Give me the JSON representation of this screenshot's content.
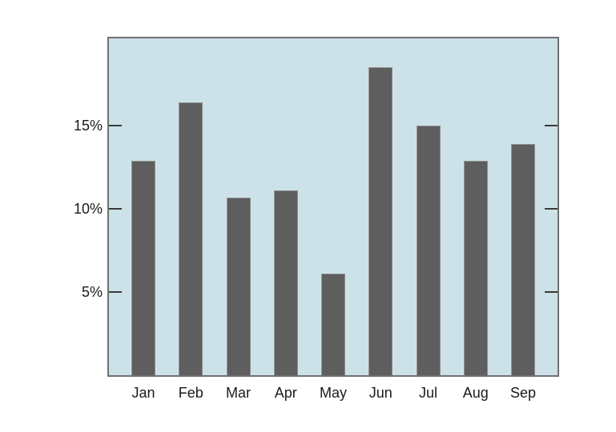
{
  "chart_data": {
    "type": "bar",
    "title": "",
    "xlabel": "",
    "ylabel": "",
    "categories": [
      "Jan",
      "Feb",
      "Mar",
      "Apr",
      "May",
      "Jun",
      "Jul",
      "Aug",
      "Sep"
    ],
    "values": [
      12.9,
      16.4,
      10.7,
      11.1,
      6.1,
      18.5,
      15.0,
      12.9,
      13.9
    ],
    "y_ticks": [
      5,
      10,
      15
    ],
    "y_tick_labels": [
      "5%",
      "10%",
      "15%"
    ],
    "ylim": [
      0,
      20.25
    ],
    "grid": false,
    "legend": false,
    "tick_style": "inward-both-sides",
    "colors": {
      "page_background": "#ffffff",
      "plot_background": "#cde2e8",
      "bar_fill": "#5e5e5e",
      "bar_border": "#919191",
      "axis_border": "#707070",
      "tick_color": "#3a3a3a",
      "label_color": "#1a1a1a"
    }
  }
}
